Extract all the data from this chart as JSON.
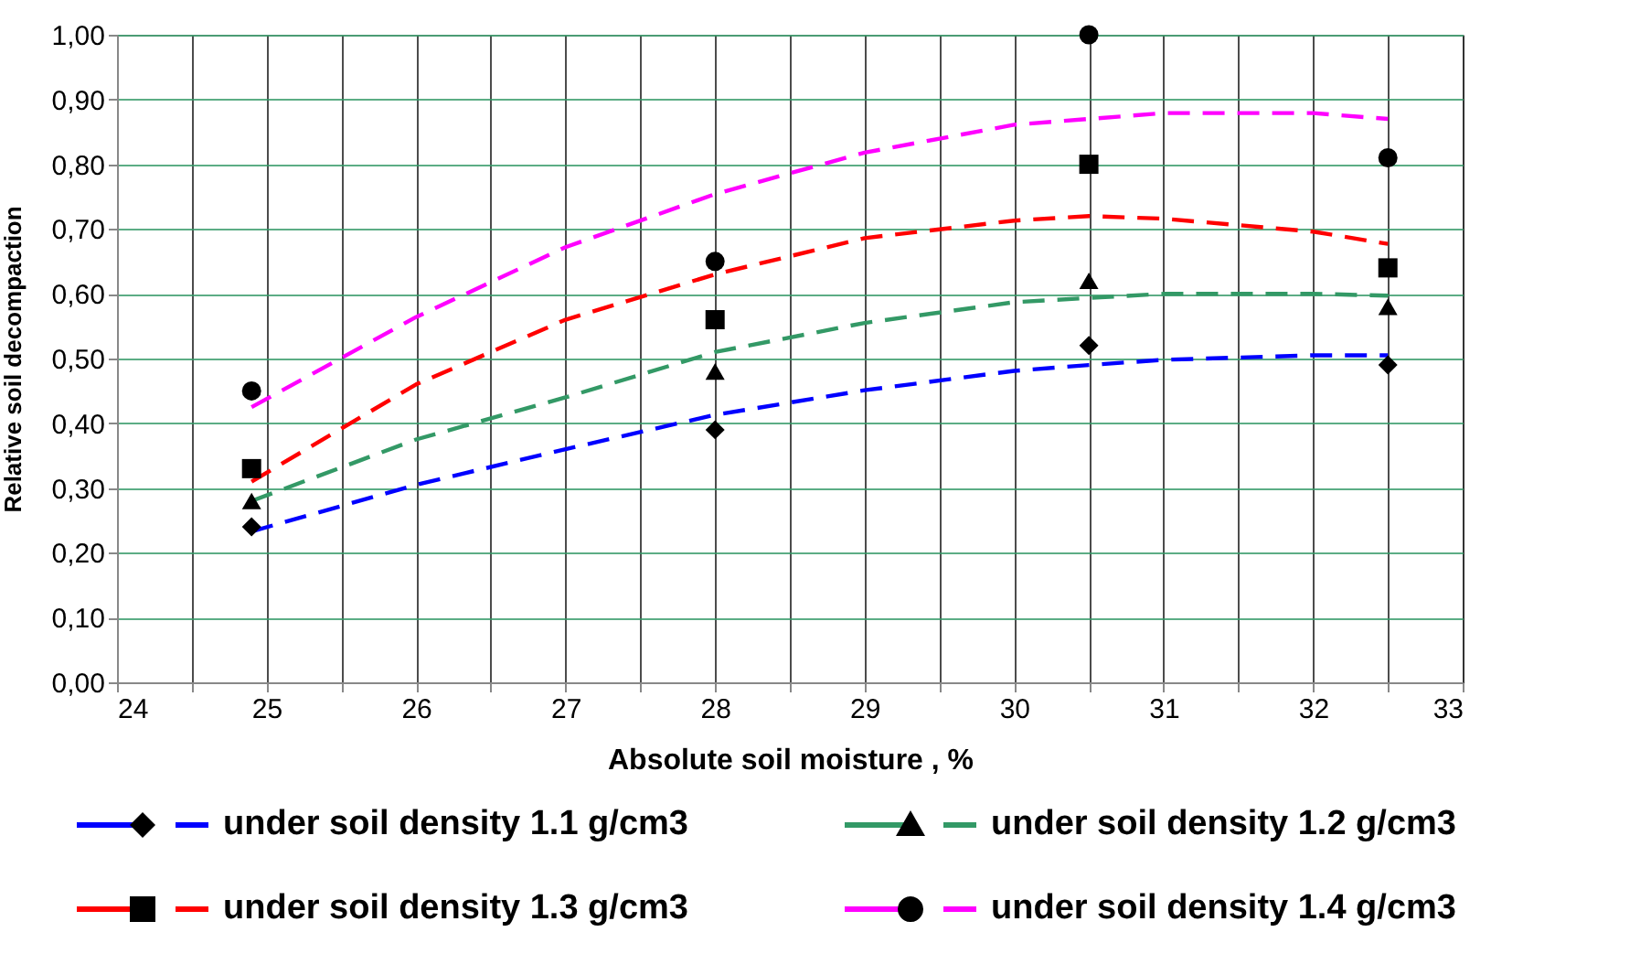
{
  "chart_data": {
    "type": "scatter",
    "xlabel": "Absolute soil moisture , %",
    "ylabel": "Relative soil decompaction",
    "xlim": [
      24,
      33
    ],
    "xticks": [
      24,
      {
        "value": 24.5,
        "label": null
      },
      25,
      {
        "value": 25.5,
        "label": null
      },
      26,
      {
        "value": 26.5,
        "label": null
      },
      27,
      {
        "value": 27.5,
        "label": null
      },
      28,
      {
        "value": 28.5,
        "label": null
      },
      29,
      {
        "value": 29.5,
        "label": null
      },
      30,
      {
        "value": 30.5,
        "label": null
      },
      31,
      {
        "value": 31.5,
        "label": null
      },
      32,
      {
        "value": 32.5,
        "label": null
      },
      33
    ],
    "ylim": [
      0,
      1
    ],
    "yticks": [
      {
        "value": 0,
        "label": "0,00"
      },
      {
        "value": 0.1,
        "label": "0,10"
      },
      {
        "value": 0.2,
        "label": "0,20"
      },
      {
        "value": 0.3,
        "label": "0,30"
      },
      {
        "value": 0.4,
        "label": "0,40"
      },
      {
        "value": 0.5,
        "label": "0,50"
      },
      {
        "value": 0.6,
        "label": "0,60"
      },
      {
        "value": 0.7,
        "label": "0,70"
      },
      {
        "value": 0.8,
        "label": "0,80"
      },
      {
        "value": 0.9,
        "label": "0,90"
      },
      {
        "value": 1,
        "label": "1,00"
      }
    ],
    "grid": true,
    "legend": "bottom",
    "series": [
      {
        "marker": "diamond",
        "color": "#000000",
        "x": [
          24.9,
          28,
          30.5,
          32.5
        ],
        "values": [
          0.24,
          0.39,
          0.52,
          0.49
        ]
      },
      {
        "name": "under soil density 1.1 g/cm3",
        "type": "line",
        "line_style": "dashed",
        "color": "#0000ff",
        "x": [
          24.9,
          26,
          27,
          28,
          29,
          30,
          30.5,
          31,
          32,
          32.5
        ],
        "values": [
          0.233,
          0.305,
          0.36,
          0.413,
          0.451,
          0.481,
          0.49,
          0.498,
          0.505,
          0.505
        ]
      },
      {
        "marker": "triangle",
        "color": "#000000",
        "x": [
          24.9,
          28,
          30.5,
          32.5
        ],
        "values": [
          0.28,
          0.48,
          0.62,
          0.58
        ]
      },
      {
        "name": "under soil density 1.2 g/cm3",
        "type": "line",
        "line_style": "dashed",
        "color": "#339966",
        "x": [
          24.9,
          26,
          27,
          28,
          29,
          30,
          31,
          32,
          32.5
        ],
        "values": [
          0.28,
          0.375,
          0.44,
          0.51,
          0.555,
          0.587,
          0.6,
          0.6,
          0.597
        ]
      },
      {
        "marker": "square",
        "color": "#000000",
        "x": [
          24.9,
          28,
          30.5,
          32.5
        ],
        "values": [
          0.33,
          0.56,
          0.8,
          0.64
        ]
      },
      {
        "name": "under soil density 1.3 g/cm3",
        "type": "line",
        "line_style": "dashed",
        "color": "#ff0000",
        "x": [
          24.9,
          26,
          27,
          28,
          29,
          30,
          30.5,
          31,
          32,
          32.5
        ],
        "values": [
          0.31,
          0.46,
          0.56,
          0.63,
          0.686,
          0.713,
          0.72,
          0.716,
          0.696,
          0.677
        ]
      },
      {
        "marker": "circle",
        "color": "#000000",
        "x": [
          24.9,
          28,
          30.5,
          32.5
        ],
        "values": [
          0.45,
          0.65,
          1.0,
          0.81
        ]
      },
      {
        "name": "under soil density 1.4 g/cm3",
        "type": "line",
        "line_style": "dashed",
        "color": "#ff00ff",
        "x": [
          24.9,
          26,
          27,
          28,
          29,
          30,
          31,
          32,
          32.5
        ],
        "values": [
          0.425,
          0.564,
          0.672,
          0.754,
          0.818,
          0.861,
          0.879,
          0.879,
          0.87
        ]
      }
    ]
  }
}
